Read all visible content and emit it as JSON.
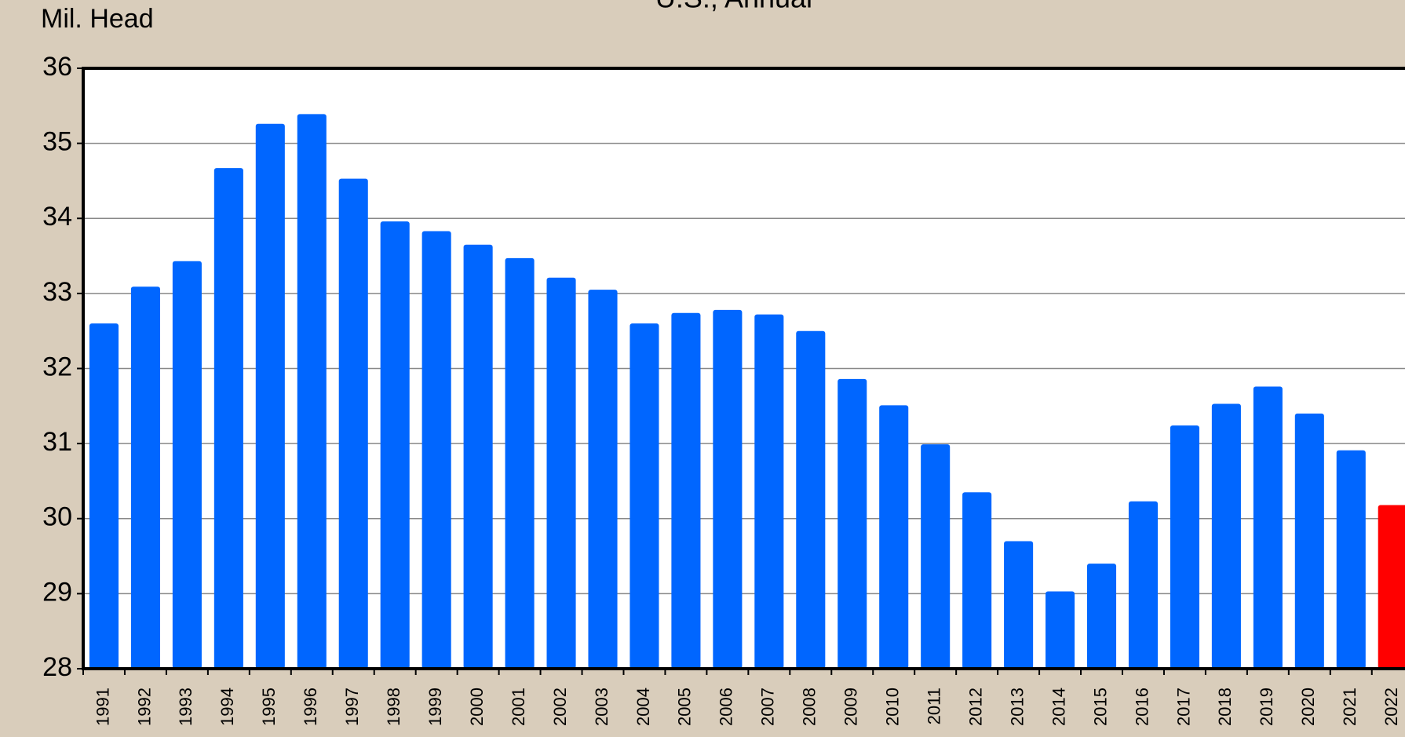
{
  "chart_data": {
    "type": "bar",
    "title": "U.S., Annual",
    "y_label": "Mil. Head",
    "categories": [
      "1991",
      "1992",
      "1993",
      "1994",
      "1995",
      "1996",
      "1997",
      "1998",
      "1999",
      "2000",
      "2001",
      "2002",
      "2003",
      "2004",
      "2005",
      "2006",
      "2007",
      "2008",
      "2009",
      "2010",
      "2011",
      "2012",
      "2013",
      "2014",
      "2015",
      "2016",
      "2017",
      "2018",
      "2019",
      "2020",
      "2021",
      "2022"
    ],
    "values": [
      32.6,
      33.09,
      33.43,
      34.67,
      35.26,
      35.39,
      34.53,
      33.96,
      33.83,
      33.65,
      33.47,
      33.21,
      33.05,
      32.6,
      32.74,
      32.78,
      32.72,
      32.5,
      31.86,
      31.51,
      30.99,
      30.35,
      29.7,
      29.03,
      29.4,
      30.23,
      31.24,
      31.53,
      31.76,
      31.4,
      30.91,
      30.18
    ],
    "colors": [
      "#0066ff",
      "#0066ff",
      "#0066ff",
      "#0066ff",
      "#0066ff",
      "#0066ff",
      "#0066ff",
      "#0066ff",
      "#0066ff",
      "#0066ff",
      "#0066ff",
      "#0066ff",
      "#0066ff",
      "#0066ff",
      "#0066ff",
      "#0066ff",
      "#0066ff",
      "#0066ff",
      "#0066ff",
      "#0066ff",
      "#0066ff",
      "#0066ff",
      "#0066ff",
      "#0066ff",
      "#0066ff",
      "#0066ff",
      "#0066ff",
      "#0066ff",
      "#0066ff",
      "#0066ff",
      "#0066ff",
      "#ff0000"
    ],
    "ylim": [
      28,
      36
    ],
    "yticks": [
      28,
      29,
      30,
      31,
      32,
      33,
      34,
      35,
      36
    ],
    "grid": true
  }
}
